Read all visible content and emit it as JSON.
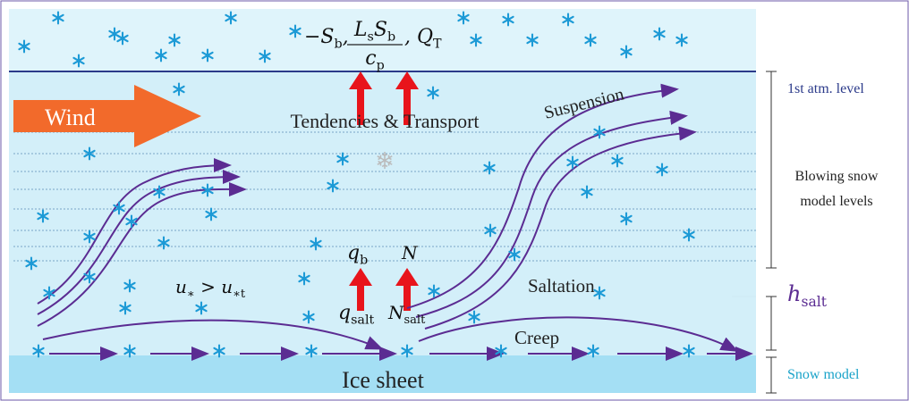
{
  "labels": {
    "wind": "Wind",
    "tendencies": "Tendencies & Transport",
    "suspension": "Suspension",
    "saltation": "Saltation",
    "creep": "Creep",
    "ice_sheet": "Ice sheet",
    "atm_level": "1st atm. level",
    "blowing_1": "Blowing snow",
    "blowing_2": "model levels",
    "snow_model": "Snow model"
  },
  "math": {
    "flux_left": [
      {
        "text": "−S"
      },
      {
        "sub": "b"
      },
      {
        "text": ","
      }
    ],
    "frac_num": [
      {
        "text": "L"
      },
      {
        "sub": "s"
      },
      {
        "text": "S"
      },
      {
        "sub": "b"
      }
    ],
    "frac_den": [
      {
        "text": "c"
      },
      {
        "sub": "p"
      }
    ],
    "flux_right": [
      {
        "text": ", Q"
      },
      {
        "sub": "T"
      }
    ],
    "q_b": [
      {
        "text": "q"
      },
      {
        "sub": "b"
      }
    ],
    "n": [
      {
        "text": "N"
      }
    ],
    "q_salt": [
      {
        "text": "q"
      },
      {
        "sub": "salt"
      }
    ],
    "n_salt": [
      {
        "text": "N"
      },
      {
        "sub": "salt"
      }
    ],
    "threshold": [
      {
        "text": "u"
      },
      {
        "sub": "∗"
      },
      {
        "text": " > u"
      },
      {
        "sub": "∗t"
      }
    ],
    "h_salt": [
      {
        "text": "h"
      },
      {
        "sub": "salt"
      }
    ]
  }
}
